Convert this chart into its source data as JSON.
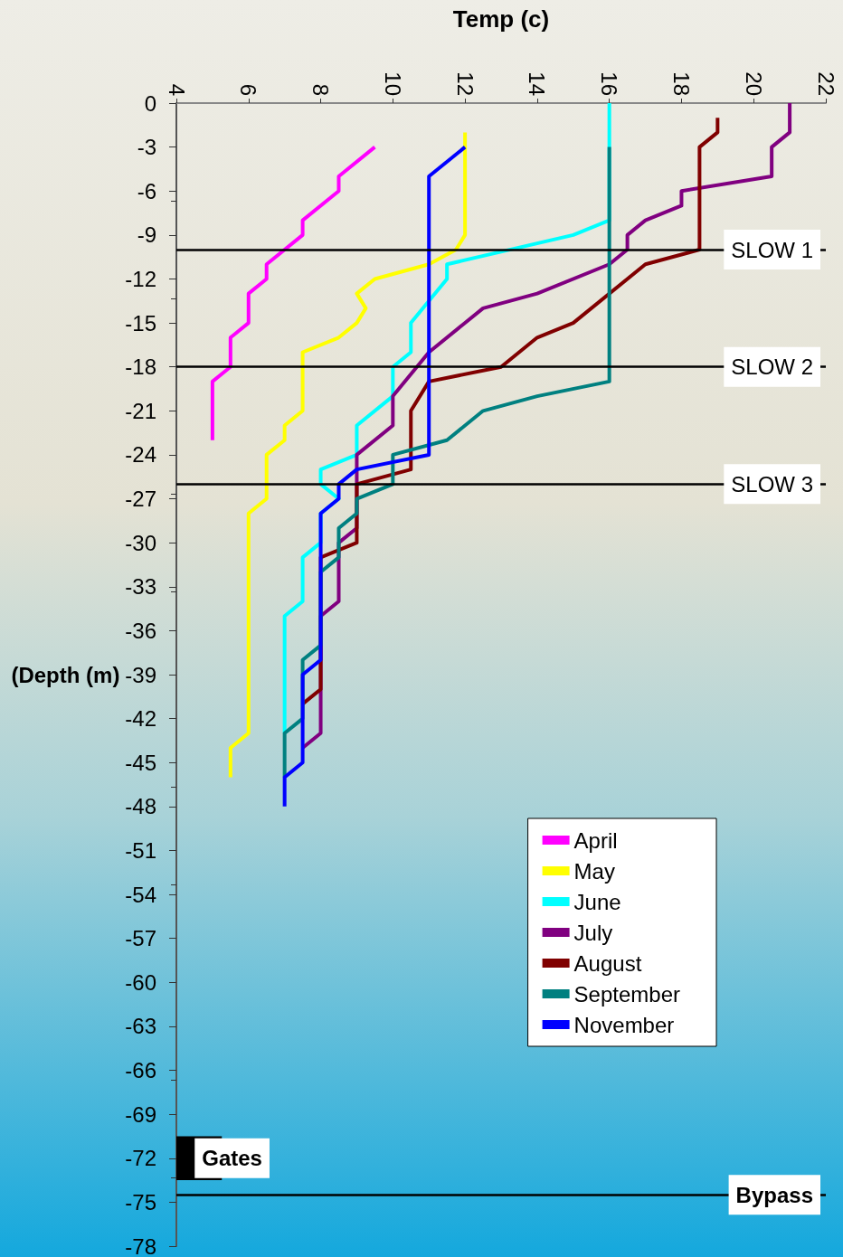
{
  "chart_data": {
    "type": "line",
    "xlabel": "Temp (c)",
    "ylabel": "(Depth (m)",
    "xlim": [
      4,
      22
    ],
    "xticks": [
      4,
      6,
      8,
      10,
      12,
      14,
      16,
      18,
      20,
      22
    ],
    "ylim": [
      -78,
      0
    ],
    "yticks": [
      0,
      -3,
      -6,
      -9,
      -12,
      -15,
      -18,
      -21,
      -24,
      -27,
      -30,
      -33,
      -36,
      -39,
      -42,
      -45,
      -48,
      -51,
      -54,
      -57,
      -60,
      -63,
      -66,
      -69,
      -72,
      -75,
      -78
    ],
    "grid": false,
    "legend": "right",
    "marker": "none",
    "line_style": "solid",
    "series": [
      {
        "name": "April",
        "color": "#ff00ff",
        "x": [
          9.5,
          8.5,
          8.5,
          7.5,
          7.5,
          6.5,
          6.5,
          6,
          6,
          5.5,
          5.5,
          5,
          5
        ],
        "values": [
          -3,
          -5,
          -6,
          -8,
          -9,
          -11,
          -12,
          -13,
          -15,
          -16,
          -18,
          -19,
          -23
        ]
      },
      {
        "name": "May",
        "color": "#ffff00",
        "x": [
          12,
          12,
          11.75,
          11,
          9.5,
          9,
          9.25,
          9,
          8.5,
          7.5,
          7.5,
          7,
          7,
          6.5,
          6.5,
          6,
          6,
          5.5,
          5.5
        ],
        "values": [
          -2,
          -9,
          -10,
          -11,
          -12,
          -13,
          -14,
          -15,
          -16,
          -17,
          -21,
          -22,
          -23,
          -24,
          -27,
          -28,
          -43,
          -44,
          -46
        ]
      },
      {
        "name": "June",
        "color": "#00ffff",
        "x": [
          16,
          16,
          15,
          11.5,
          11.5,
          10.5,
          10.5,
          10,
          10,
          9,
          9,
          8,
          8,
          8.5,
          8,
          8,
          7.5,
          7.5,
          7,
          7
        ],
        "values": [
          0,
          -8,
          -9,
          -11,
          -12,
          -15,
          -17,
          -18,
          -20,
          -22,
          -24,
          -25,
          -26,
          -27,
          -28,
          -30,
          -31,
          -34,
          -35,
          -43
        ]
      },
      {
        "name": "July",
        "color": "#800080",
        "x": [
          21,
          21,
          20.5,
          20.5,
          18,
          18,
          17,
          16.5,
          16.5,
          16,
          14,
          12.5,
          11,
          10,
          10,
          9,
          9,
          8.5,
          8.5,
          8,
          8,
          7.5
        ],
        "values": [
          0,
          -2,
          -3,
          -5,
          -6,
          -7,
          -8,
          -9,
          -10,
          -11,
          -13,
          -14,
          -17,
          -20,
          -22,
          -24,
          -29,
          -30,
          -34,
          -35,
          -43,
          -44
        ]
      },
      {
        "name": "August",
        "color": "#800000",
        "x": [
          19,
          19,
          18.5,
          18.5,
          17,
          15,
          14,
          13,
          11,
          10.5,
          10.5,
          9,
          9,
          8,
          8,
          7.5
        ],
        "values": [
          -1,
          -2,
          -3,
          -10,
          -11,
          -15,
          -16,
          -18,
          -19,
          -21,
          -25,
          -26,
          -30,
          -31,
          -40,
          -41
        ]
      },
      {
        "name": "September",
        "color": "#008080",
        "x": [
          16,
          16,
          14,
          12.5,
          11.5,
          10,
          10,
          9,
          9,
          8.5,
          8.5,
          8,
          8,
          7.5,
          7.5,
          7,
          7
        ],
        "values": [
          -3,
          -19,
          -20,
          -21,
          -23,
          -24,
          -26,
          -27,
          -28,
          -29,
          -31,
          -32,
          -37,
          -38,
          -42,
          -43,
          -46
        ]
      },
      {
        "name": "November",
        "color": "#0000ff",
        "x": [
          12,
          11,
          11,
          9,
          8.5,
          8.5,
          8,
          8,
          7.5,
          7.5,
          7,
          7
        ],
        "values": [
          -3,
          -5,
          -24,
          -25,
          -26,
          -27,
          -28,
          -38,
          -39,
          -45,
          -46,
          -48
        ]
      }
    ],
    "ref_lines": [
      {
        "axis": "y",
        "value": -10,
        "label": "SLOW 1",
        "color": "#000000"
      },
      {
        "axis": "y",
        "value": -18,
        "label": "SLOW 2",
        "color": "#000000"
      },
      {
        "axis": "y",
        "value": -26,
        "label": "SLOW 3",
        "color": "#000000"
      },
      {
        "axis": "y",
        "value": -74.5,
        "label": "Bypass",
        "color": "#000000"
      }
    ],
    "bands": [
      {
        "axis": "y",
        "from": -70.5,
        "to": -73.5,
        "label": "Gates",
        "color": "#000000"
      }
    ]
  }
}
